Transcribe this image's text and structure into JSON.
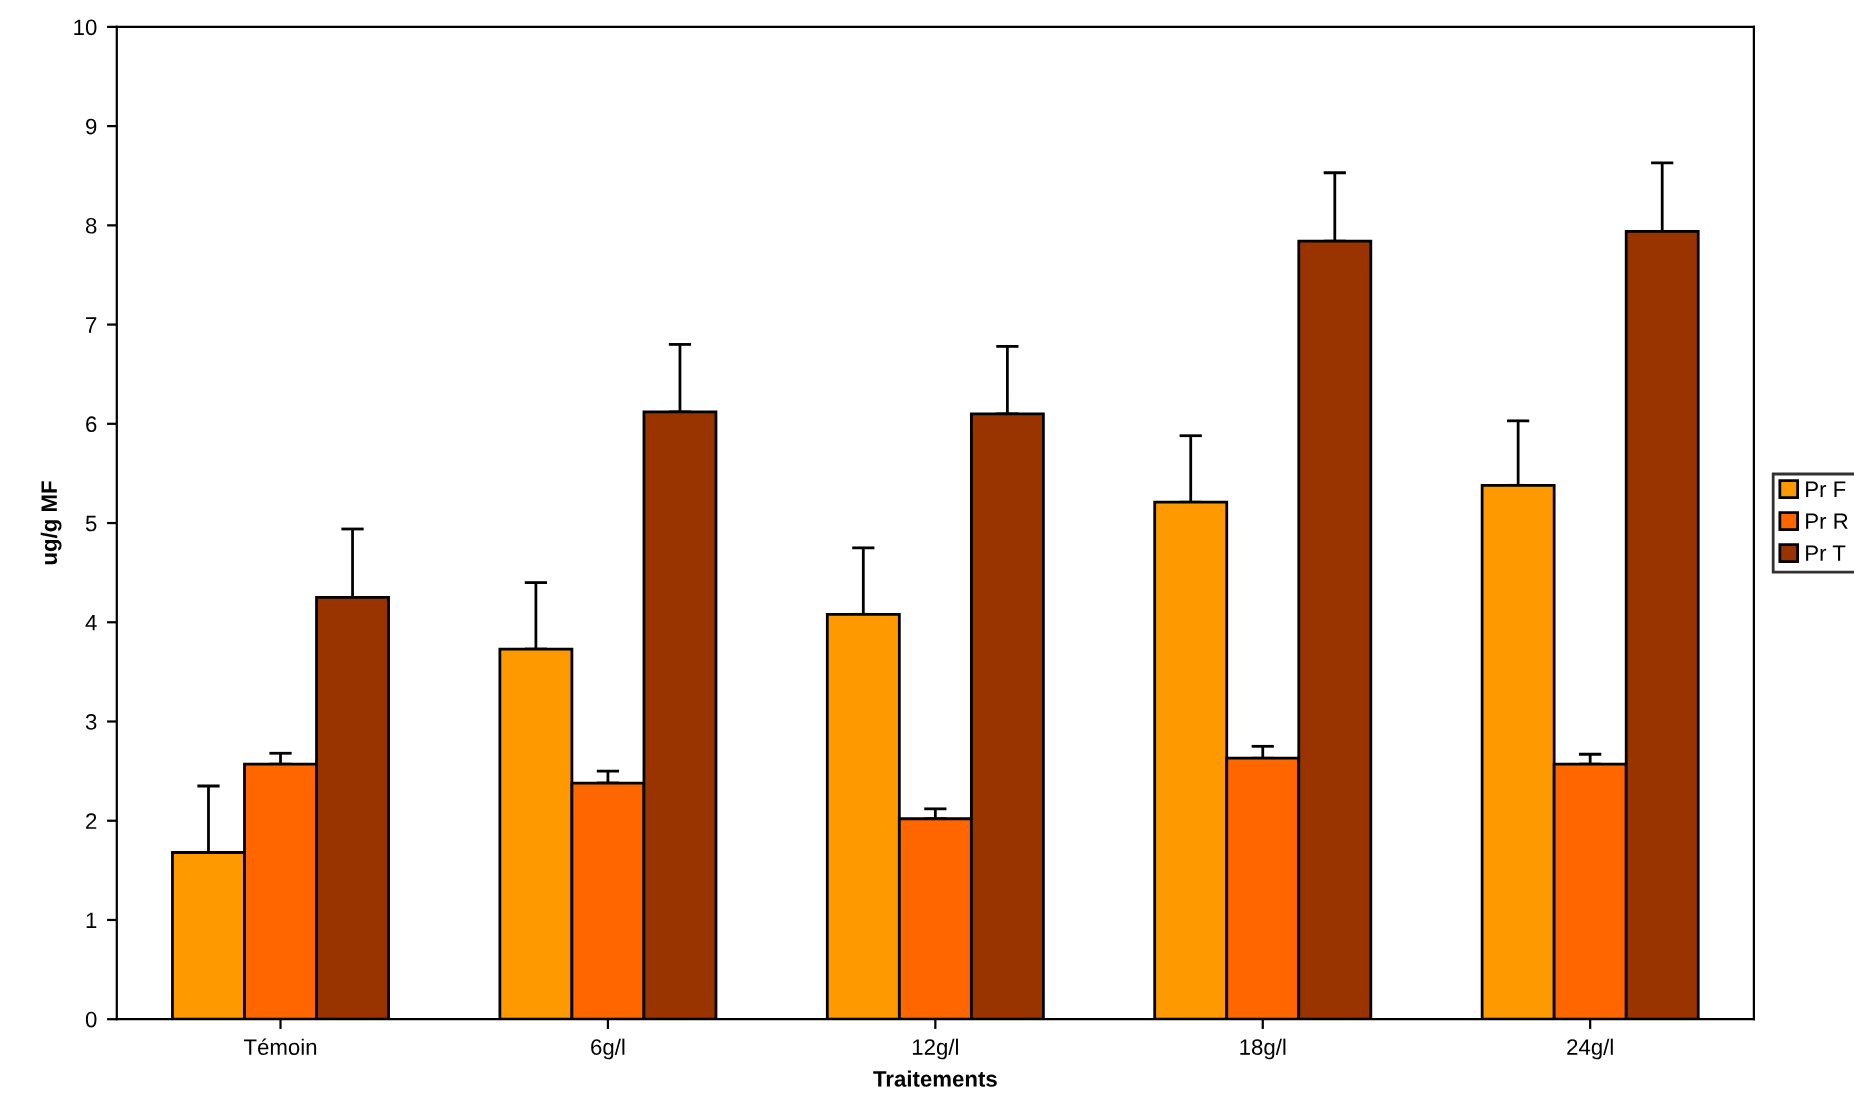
{
  "chart_data": {
    "type": "bar",
    "xlabel": "Traitements",
    "ylabel": "ug/g MF",
    "categories": [
      "Témoin",
      "6g/l",
      "12g/l",
      "18g/l",
      "24g/l"
    ],
    "series": [
      {
        "name": "Pr F",
        "color": "#ff9900",
        "values": [
          1.68,
          3.73,
          4.08,
          5.21,
          5.38
        ],
        "errors": [
          [
            1.68,
            2.35
          ],
          [
            3.73,
            4.4
          ],
          [
            4.08,
            4.75
          ],
          [
            5.21,
            5.88
          ],
          [
            5.38,
            6.03
          ]
        ]
      },
      {
        "name": "Pr R",
        "color": "#ff6600",
        "values": [
          2.57,
          2.38,
          2.02,
          2.63,
          2.57
        ],
        "errors": [
          [
            2.57,
            2.68
          ],
          [
            2.38,
            2.5
          ],
          [
            2.02,
            2.12
          ],
          [
            2.63,
            2.75
          ],
          [
            2.57,
            2.67
          ]
        ]
      },
      {
        "name": "Pr T",
        "color": "#993300",
        "values": [
          4.25,
          6.12,
          6.1,
          7.84,
          7.94
        ],
        "errors": [
          [
            4.25,
            4.94
          ],
          [
            6.12,
            6.8
          ],
          [
            6.1,
            6.78
          ],
          [
            7.84,
            8.53
          ],
          [
            7.94,
            8.63
          ]
        ]
      }
    ],
    "ylim": [
      0,
      10
    ],
    "yticks": [
      0,
      1,
      2,
      3,
      4,
      5,
      6,
      7,
      8,
      9,
      10
    ],
    "grid": false,
    "legend": "right"
  }
}
